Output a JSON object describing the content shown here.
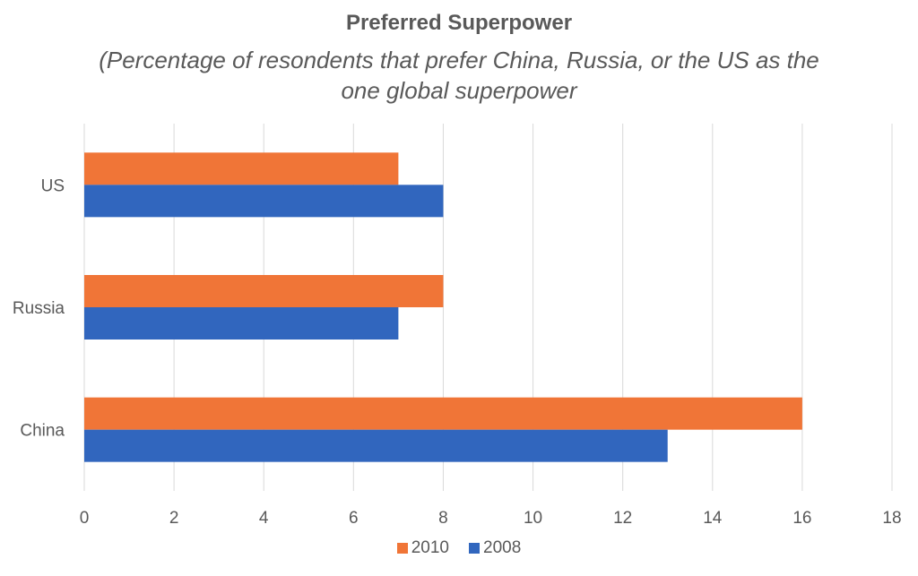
{
  "chart_data": {
    "type": "bar",
    "orientation": "horizontal",
    "title": "Preferred Superpower",
    "subtitle": "(Percentage of resondents that prefer China, Russia, or the US as the one global superpower",
    "categories": [
      "US",
      "Russia",
      "China"
    ],
    "series": [
      {
        "name": "2010",
        "color": "#F07537",
        "values": [
          7,
          8,
          16
        ]
      },
      {
        "name": "2008",
        "color": "#3166BE",
        "values": [
          8,
          7,
          13
        ]
      }
    ],
    "xlim": [
      0,
      18
    ],
    "xticks": [
      "0",
      "2",
      "4",
      "6",
      "8",
      "10",
      "12",
      "14",
      "16",
      "18"
    ],
    "grid": true,
    "legend_position": "bottom"
  }
}
